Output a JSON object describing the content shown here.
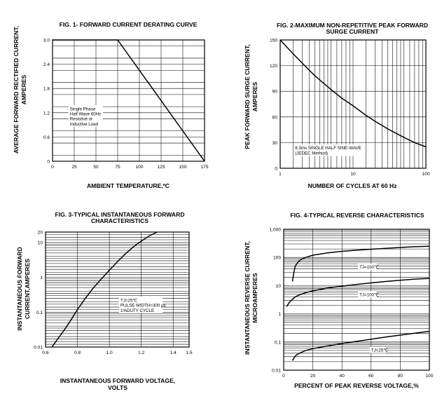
{
  "chart_data": [
    {
      "id": "fig1",
      "type": "line",
      "title": "FIG. 1- FORWARD CURRENT DERATING CURVE",
      "xlabel": "AMBIENT TEMPERATURE,ºC",
      "ylabel": [
        "AVERAGE FORWARD RECTIFIED CURRENT,",
        "AMPERES"
      ],
      "xscale": "linear",
      "yscale": "linear",
      "xlim": [
        0,
        175
      ],
      "ylim": [
        0,
        3.0
      ],
      "xticks": [
        0,
        25,
        50,
        75,
        100,
        125,
        150,
        175
      ],
      "xtick_labels": [
        "0",
        "25",
        "50",
        "75",
        "100",
        "125",
        "150",
        "175"
      ],
      "yticks": [
        0,
        0.6,
        1.2,
        1.8,
        2.4,
        3.0
      ],
      "ytick_labels": [
        "0",
        "0.6",
        "1.2",
        "1.8",
        "2.4",
        "3.0"
      ],
      "grid": true,
      "series": [
        {
          "x": [
            0,
            75,
            175
          ],
          "y": [
            3.0,
            3.0,
            0
          ]
        }
      ],
      "annotations": [
        {
          "lines": [
            "Single Phase",
            "Half Wave 60Hz",
            "Resistive or",
            "Inductive Load"
          ],
          "x": 20,
          "y": 1.26
        }
      ]
    },
    {
      "id": "fig2",
      "type": "line",
      "title": [
        "FIG. 2-MAXIMUM NON-REPETITIVE PEAK FORWARD",
        "SURGE CURRENT"
      ],
      "xlabel": "NUMBER OF CYCLES AT 60 Hz",
      "ylabel": [
        "PEAK FORWARD SURGE CURRENT,",
        "AMPERES"
      ],
      "xscale": "log",
      "yscale": "linear",
      "xlim": [
        1,
        100
      ],
      "ylim": [
        0,
        150
      ],
      "xticks": [
        1,
        10,
        100
      ],
      "xtick_labels": [
        "1",
        "10",
        "100"
      ],
      "yticks": [
        0,
        30,
        60,
        90,
        120,
        150
      ],
      "ytick_labels": [
        "0",
        "30",
        "60",
        "90",
        "120",
        "150"
      ],
      "grid": true,
      "series": [
        {
          "x": [
            1,
            1.5,
            2,
            3,
            5,
            7,
            10,
            15,
            20,
            30,
            50,
            70,
            100
          ],
          "y": [
            150,
            134,
            123,
            108,
            92,
            82,
            73,
            62,
            55,
            46,
            36,
            30,
            25
          ]
        }
      ],
      "annotations": [
        {
          "lines": [
            "8.3ms SINGLE HALF SINE-WAVE",
            "(JEDEC Method)"
          ],
          "x": 1.6,
          "y": 22
        }
      ]
    },
    {
      "id": "fig3",
      "type": "line",
      "title": [
        "FIG. 3-TYPICAL INSTANTANEOUS FORWARD",
        "CHARACTERISTICS"
      ],
      "xlabel": [
        "INSTANTANEOUS FORWARD VOLTAGE,",
        "VOLTS"
      ],
      "ylabel": [
        "INSTANTANEOUS FORWARD",
        "CURRENT,AMPERES"
      ],
      "xscale": "linear",
      "yscale": "log",
      "xlim": [
        0.6,
        1.5
      ],
      "ylim": [
        0.01,
        20
      ],
      "xticks": [
        0.6,
        0.8,
        1.0,
        1.2,
        1.4,
        1.5
      ],
      "xtick_labels": [
        "0.6",
        "0.8",
        "1.0",
        "1.2",
        "1.4",
        "1.5"
      ],
      "yticks": [
        0.01,
        0.1,
        1,
        10,
        20
      ],
      "ytick_labels": [
        "0.01",
        "0.1",
        "1",
        "10",
        "20"
      ],
      "grid": true,
      "series": [
        {
          "x": [
            0.64,
            0.68,
            0.72,
            0.76,
            0.8,
            0.85,
            0.9,
            0.95,
            1.0,
            1.05,
            1.1,
            1.15,
            1.2,
            1.25,
            1.3
          ],
          "y": [
            0.01,
            0.018,
            0.032,
            0.06,
            0.12,
            0.25,
            0.5,
            0.9,
            1.6,
            2.8,
            4.7,
            7.5,
            11,
            15.5,
            20
          ]
        }
      ],
      "annotations": [
        {
          "lines": [
            "TJ=25℃",
            "PULSE WIDTH=300 μs",
            "1%DUTY CYCLE"
          ],
          "x": 1.07,
          "y": 0.2
        }
      ]
    },
    {
      "id": "fig4",
      "type": "line",
      "title": "FIG. 4-TYPICAL REVERSE CHARACTERISTICS",
      "xlabel": "PERCENT OF PEAK REVERSE VOLTAGE,%",
      "ylabel": [
        "INSTANTANEOUS REVERSE CURRENT,",
        "MICROAMPERES"
      ],
      "xscale": "linear",
      "yscale": "log",
      "xlim": [
        0,
        100
      ],
      "ylim": [
        0.01,
        1000
      ],
      "xticks": [
        0,
        20,
        40,
        60,
        80,
        100
      ],
      "xtick_labels": [
        "0",
        "20",
        "40",
        "60",
        "80",
        "100"
      ],
      "yticks": [
        0.01,
        0.1,
        1,
        10,
        100,
        1000
      ],
      "ytick_labels": [
        "0.01",
        "0.1",
        "1",
        "10",
        "100",
        "1,000"
      ],
      "grid": true,
      "series": [
        {
          "name": "TJ=150℃",
          "x": [
            6,
            7,
            8,
            10,
            12,
            15,
            20,
            30,
            40,
            50,
            60,
            70,
            80,
            90,
            100
          ],
          "y": [
            14,
            30,
            50,
            70,
            85,
            100,
            120,
            145,
            165,
            180,
            195,
            210,
            225,
            240,
            250
          ]
        },
        {
          "name": "TJ=100℃",
          "x": [
            2,
            4,
            6,
            8,
            10,
            15,
            20,
            30,
            40,
            50,
            60,
            70,
            80,
            90,
            100
          ],
          "y": [
            1.8,
            2.6,
            3.3,
            4,
            4.5,
            5.6,
            6.5,
            8.2,
            9.6,
            11,
            12.5,
            14,
            15.5,
            17,
            18
          ]
        },
        {
          "name": "TJ=25℃",
          "x": [
            6,
            8,
            10,
            15,
            20,
            30,
            40,
            50,
            60,
            70,
            80,
            90,
            100
          ],
          "y": [
            0.022,
            0.032,
            0.038,
            0.05,
            0.058,
            0.072,
            0.088,
            0.105,
            0.125,
            0.15,
            0.175,
            0.205,
            0.24
          ]
        }
      ],
      "annotations": [
        {
          "lines": [
            "TJ=150℃"
          ],
          "series": 0,
          "x": 52,
          "y": 40
        },
        {
          "lines": [
            "TJ=100℃"
          ],
          "series": 1,
          "x": 52,
          "y": 4.2
        },
        {
          "lines": [
            "TJ=25℃"
          ],
          "series": 2,
          "x": 60,
          "y": 0.045
        }
      ]
    }
  ]
}
